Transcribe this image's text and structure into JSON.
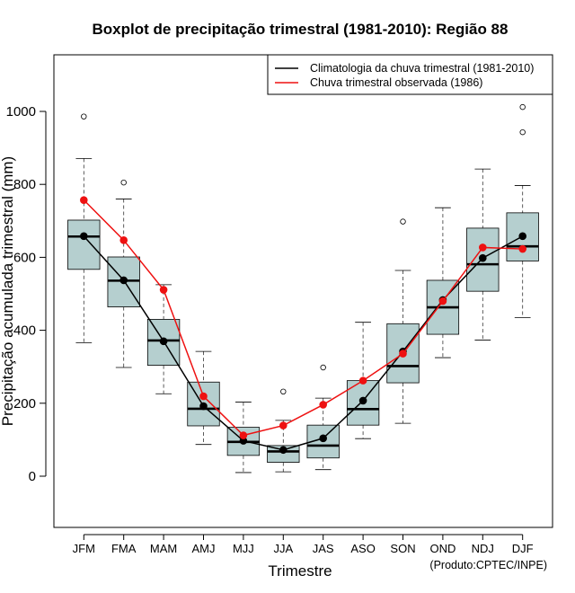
{
  "chart_data": {
    "type": "boxplot",
    "title": "Boxplot de precipitação trimestral (1981-2010): Região 88",
    "xlabel": "Trimestre",
    "ylabel": "Precipitação acumulada trimestral (mm)",
    "ylim": [
      -140,
      1160
    ],
    "yticks": [
      0,
      200,
      400,
      600,
      800,
      1000
    ],
    "categories": [
      "JFM",
      "FMA",
      "MAM",
      "AMJ",
      "MJJ",
      "JJA",
      "JAS",
      "ASO",
      "SON",
      "OND",
      "NDJ",
      "DJF"
    ],
    "boxes": [
      {
        "category": "JFM",
        "whisker_low": 366,
        "q1": 567,
        "median": 657,
        "q3": 702,
        "whisker_high": 871,
        "outliers": [
          986
        ]
      },
      {
        "category": "FMA",
        "whisker_low": 298,
        "q1": 464,
        "median": 536,
        "q3": 601,
        "whisker_high": 760,
        "outliers": [
          805
        ]
      },
      {
        "category": "MAM",
        "whisker_low": 226,
        "q1": 304,
        "median": 372,
        "q3": 430,
        "whisker_high": 525,
        "outliers": []
      },
      {
        "category": "AMJ",
        "whisker_low": 87,
        "q1": 138,
        "median": 185,
        "q3": 258,
        "whisker_high": 342,
        "outliers": []
      },
      {
        "category": "MJJ",
        "whisker_low": 10,
        "q1": 57,
        "median": 94,
        "q3": 134,
        "whisker_high": 203,
        "outliers": []
      },
      {
        "category": "JJA",
        "whisker_low": 12,
        "q1": 38,
        "median": 68,
        "q3": 84,
        "whisker_high": 153,
        "outliers": [
          232
        ]
      },
      {
        "category": "JAS",
        "whisker_low": 18,
        "q1": 50,
        "median": 84,
        "q3": 140,
        "whisker_high": 214,
        "outliers": [
          298
        ]
      },
      {
        "category": "ASO",
        "whisker_low": 103,
        "q1": 140,
        "median": 184,
        "q3": 262,
        "whisker_high": 422,
        "outliers": []
      },
      {
        "category": "SON",
        "whisker_low": 145,
        "q1": 256,
        "median": 302,
        "q3": 418,
        "whisker_high": 564,
        "outliers": [
          698
        ]
      },
      {
        "category": "OND",
        "whisker_low": 325,
        "q1": 389,
        "median": 463,
        "q3": 537,
        "whisker_high": 736,
        "outliers": []
      },
      {
        "category": "NDJ",
        "whisker_low": 373,
        "q1": 507,
        "median": 581,
        "q3": 680,
        "whisker_high": 842,
        "outliers": []
      },
      {
        "category": "DJF",
        "whisker_low": 435,
        "q1": 590,
        "median": 630,
        "q3": 722,
        "whisker_high": 797,
        "outliers": [
          943,
          1012
        ]
      }
    ],
    "series": [
      {
        "name": "Climatologia da chuva trimestral (1981-2010)",
        "color": "#000000",
        "values": [
          658,
          537,
          370,
          192,
          97,
          72,
          104,
          207,
          342,
          483,
          598,
          658
        ]
      },
      {
        "name": "Chuva trimestral observada (1986)",
        "color": "#ee1111",
        "values": [
          757,
          647,
          511,
          219,
          112,
          139,
          196,
          262,
          336,
          480,
          627,
          623
        ]
      }
    ],
    "legend_position": "top-right",
    "box_fill": "#b5cfcf",
    "credit": "(Produto:CPTEC/INPE)"
  }
}
